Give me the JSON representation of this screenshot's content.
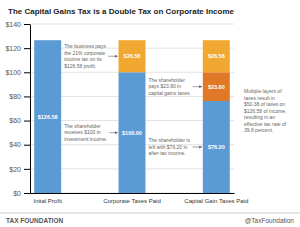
{
  "chart_data": {
    "type": "bar",
    "stacked": true,
    "data_labels": true,
    "grid": true,
    "title": "The Capital Gains Tax is a Double Tax on Corporate Income",
    "categories": [
      "Inital Profit",
      "Corporate Taxes Paid",
      "Capital Gain Taxes Paid"
    ],
    "series": [
      {
        "color": "#5b9bd5",
        "values": [
          126.58,
          100.0,
          76.2
        ],
        "value_labels": [
          "$126.58",
          "$100.00",
          "$76.20"
        ]
      },
      {
        "color": "#e07828",
        "values": [
          null,
          null,
          23.8
        ],
        "value_labels": [
          null,
          null,
          "$23.80"
        ]
      },
      {
        "color": "#f0a830",
        "values": [
          null,
          26.58,
          26.58
        ],
        "value_labels": [
          null,
          "$26.58",
          "$26.58"
        ]
      }
    ],
    "ylim": [
      0,
      140
    ],
    "yticks": [
      {
        "value": 0,
        "label": "$0"
      },
      {
        "value": 20,
        "label": "$20"
      },
      {
        "value": 40,
        "label": "$40"
      },
      {
        "value": 60,
        "label": "$60"
      },
      {
        "value": 80,
        "label": "$80"
      },
      {
        "value": 100,
        "label": "$100"
      },
      {
        "value": 120,
        "label": "$120"
      },
      {
        "value": 140,
        "label": "$140"
      }
    ],
    "annotations": [
      "The business pays\nthe 21% corporate\nincome tax on its\n$126.58 profit.",
      "The shareholder\nreceives $100 in\ninvestment income.",
      "The shareholder\npays $23.80 in\ncapital gains taxes.",
      "The shareholder is\nleft with $76.20 in\nafter-tax income.",
      "Multiple layers of\ntaxes result in\n$50.38 of taxes on\n$126.58 of income,\nresulting in an\neffective tax rate of\n39.8 percent."
    ],
    "footer": [
      "TAX FOUNDATION",
      "@TaxFoundation"
    ]
  }
}
